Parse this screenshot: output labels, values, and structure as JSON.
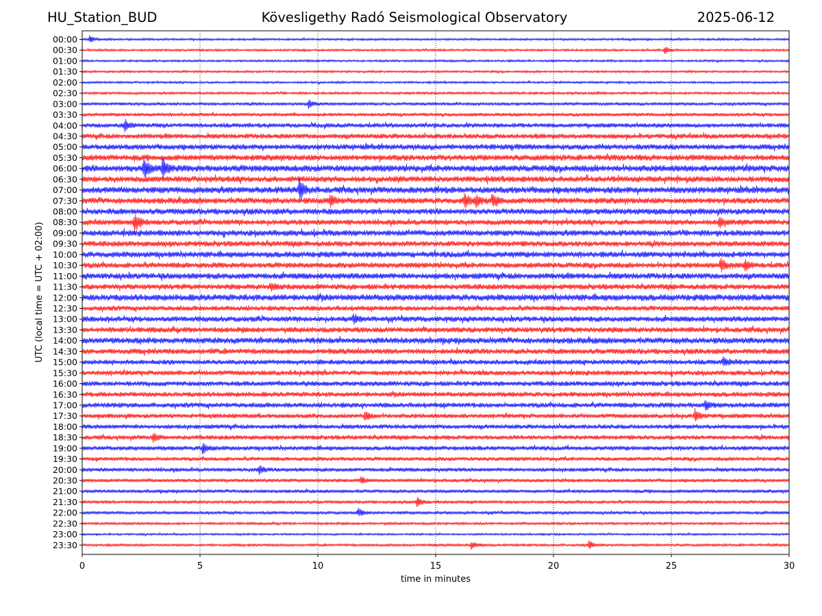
{
  "header": {
    "station": "HU_Station_BUD",
    "title": "Kövesligethy Radó Seismological Observatory",
    "date": "2025-06-12"
  },
  "colors": {
    "even_trace": "#0000ff",
    "odd_trace": "#ff0000",
    "grid": "#000000"
  },
  "chart_data": {
    "type": "line",
    "title": "Kövesligethy Radó Seismological Observatory",
    "xlabel": "time in minutes",
    "ylabel": "UTC (local time = UTC + 02:00)",
    "xlim": [
      0,
      30
    ],
    "xticks": [
      0,
      5,
      10,
      15,
      20,
      25,
      30
    ],
    "x_gridlines": [
      5,
      10,
      15,
      20,
      25
    ],
    "grid": "vertical dotted",
    "trace_colors": [
      "blue",
      "red"
    ],
    "rows": [
      "00:00",
      "00:30",
      "01:00",
      "01:30",
      "02:00",
      "02:30",
      "03:00",
      "03:30",
      "04:00",
      "04:30",
      "05:00",
      "05:30",
      "06:00",
      "06:30",
      "07:00",
      "07:30",
      "08:00",
      "08:30",
      "09:00",
      "09:30",
      "10:00",
      "10:30",
      "11:00",
      "11:30",
      "12:00",
      "12:30",
      "13:00",
      "13:30",
      "14:00",
      "14:30",
      "15:00",
      "15:30",
      "16:00",
      "16:30",
      "17:00",
      "17:30",
      "18:00",
      "18:30",
      "19:00",
      "19:30",
      "20:00",
      "20:30",
      "21:00",
      "21:30",
      "22:00",
      "22:30",
      "23:00",
      "23:30"
    ],
    "noise_level": [
      0.22,
      0.22,
      0.22,
      0.22,
      0.22,
      0.25,
      0.3,
      0.35,
      0.45,
      0.5,
      0.55,
      0.6,
      0.65,
      0.6,
      0.65,
      0.6,
      0.6,
      0.55,
      0.6,
      0.55,
      0.6,
      0.55,
      0.6,
      0.55,
      0.65,
      0.5,
      0.55,
      0.55,
      0.6,
      0.55,
      0.5,
      0.5,
      0.5,
      0.5,
      0.5,
      0.45,
      0.45,
      0.45,
      0.45,
      0.4,
      0.4,
      0.35,
      0.35,
      0.3,
      0.3,
      0.25,
      0.2,
      0.25
    ],
    "events": [
      {
        "row": "00:00",
        "minute": 0.3,
        "amp": 0.9
      },
      {
        "row": "00:30",
        "minute": 24.7,
        "amp": 0.9
      },
      {
        "row": "03:00",
        "minute": 9.6,
        "amp": 1.0
      },
      {
        "row": "04:00",
        "minute": 1.8,
        "amp": 1.1
      },
      {
        "row": "06:00",
        "minute": 2.6,
        "amp": 2.6
      },
      {
        "row": "06:00",
        "minute": 3.4,
        "amp": 2.4
      },
      {
        "row": "07:00",
        "minute": 9.2,
        "amp": 2.5
      },
      {
        "row": "07:30",
        "minute": 10.5,
        "amp": 1.2
      },
      {
        "row": "07:30",
        "minute": 16.2,
        "amp": 1.6
      },
      {
        "row": "07:30",
        "minute": 16.7,
        "amp": 1.5
      },
      {
        "row": "07:30",
        "minute": 17.4,
        "amp": 1.4
      },
      {
        "row": "08:30",
        "minute": 2.2,
        "amp": 2.2
      },
      {
        "row": "08:30",
        "minute": 27.0,
        "amp": 1.4
      },
      {
        "row": "10:30",
        "minute": 27.1,
        "amp": 1.5
      },
      {
        "row": "10:30",
        "minute": 28.1,
        "amp": 1.3
      },
      {
        "row": "11:30",
        "minute": 8.0,
        "amp": 0.9
      },
      {
        "row": "13:00",
        "minute": 11.5,
        "amp": 1.0
      },
      {
        "row": "15:00",
        "minute": 27.2,
        "amp": 1.0
      },
      {
        "row": "17:00",
        "minute": 26.4,
        "amp": 1.0
      },
      {
        "row": "17:30",
        "minute": 12.0,
        "amp": 1.2
      },
      {
        "row": "17:30",
        "minute": 26.0,
        "amp": 1.3
      },
      {
        "row": "18:30",
        "minute": 3.0,
        "amp": 1.0
      },
      {
        "row": "19:00",
        "minute": 5.1,
        "amp": 1.2
      },
      {
        "row": "20:00",
        "minute": 7.5,
        "amp": 1.0
      },
      {
        "row": "20:30",
        "minute": 11.8,
        "amp": 0.9
      },
      {
        "row": "21:30",
        "minute": 14.2,
        "amp": 1.0
      },
      {
        "row": "22:00",
        "minute": 11.7,
        "amp": 1.2
      },
      {
        "row": "23:30",
        "minute": 16.5,
        "amp": 0.9
      },
      {
        "row": "23:30",
        "minute": 21.5,
        "amp": 1.0
      }
    ]
  }
}
